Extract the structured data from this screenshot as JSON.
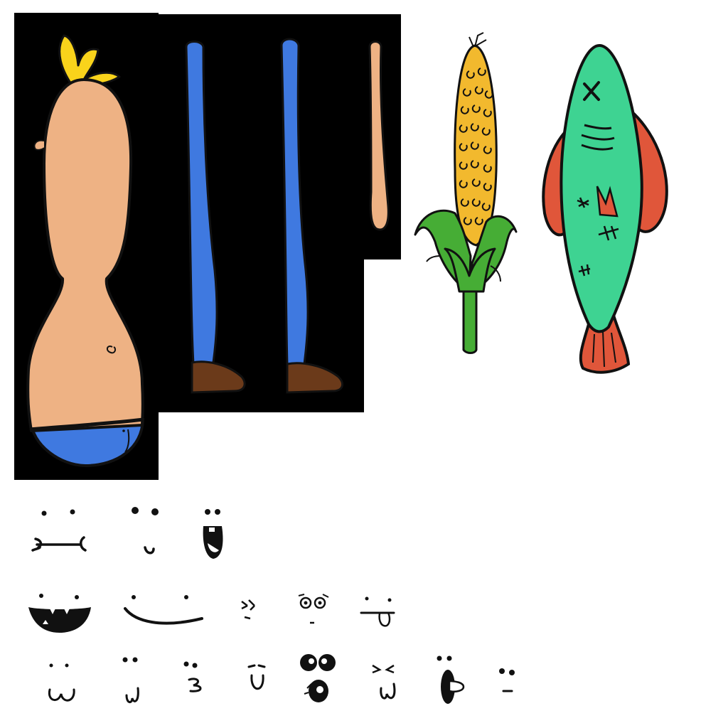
{
  "sprite_sheet": {
    "background_color": "#ffffff",
    "panel_color": "#000000",
    "outline_color": "#111111",
    "colors": {
      "skin": "#eeb284",
      "hair": "#f9d31b",
      "pants": "#3f79e0",
      "shoe": "#6b3a1a",
      "corn_kernel": "#f2b92e",
      "corn_husk": "#46ad35",
      "fish_body": "#3ed392",
      "fish_fin": "#e0563a"
    },
    "parts": [
      {
        "name": "torso-with-head",
        "icon": "torso-sprite"
      },
      {
        "name": "left-leg",
        "icon": "leg-sprite"
      },
      {
        "name": "right-leg",
        "icon": "leg-sprite"
      },
      {
        "name": "arm",
        "icon": "arm-sprite"
      },
      {
        "name": "corn-cob",
        "icon": "corn-icon"
      },
      {
        "name": "fish",
        "icon": "fish-icon"
      }
    ],
    "face_expressions": [
      "bone-mouth",
      "small-smile",
      "open-mouth",
      "big-grin",
      "wide-smile",
      "squint",
      "googly-eyes",
      "tongue-out",
      "w-mouth",
      "small-w",
      "three-mouth",
      "u-mouth",
      "shocked",
      "wink-w",
      "tongue-side",
      "neutral"
    ]
  }
}
